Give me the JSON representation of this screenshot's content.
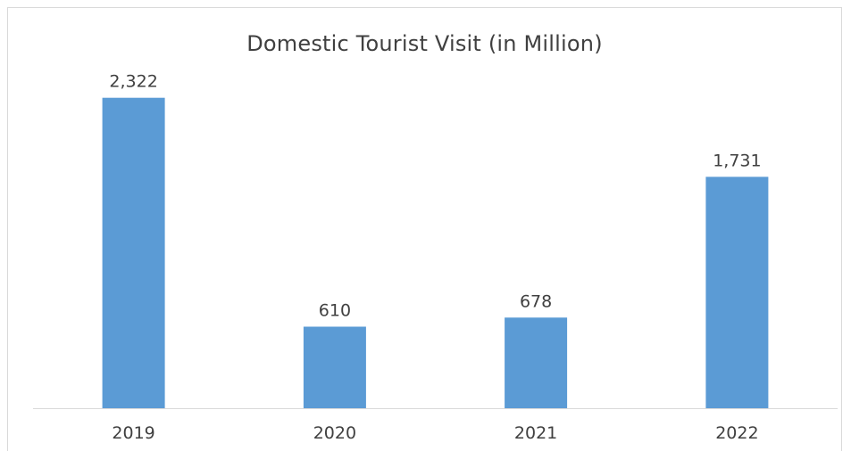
{
  "chart_data": {
    "type": "bar",
    "title": "Domestic Tourist Visit (in Million)",
    "categories": [
      "2019",
      "2020",
      "2021",
      "2022"
    ],
    "values": [
      2322,
      610,
      678,
      1731
    ],
    "value_labels": [
      "2,322",
      "610",
      "678",
      "1,731"
    ],
    "xlabel": "",
    "ylabel": "",
    "ylim": [
      0,
      2600
    ],
    "grid": false,
    "legend": "none",
    "bar_color": "#5b9bd5",
    "axis_color": "#d9d9d9"
  }
}
